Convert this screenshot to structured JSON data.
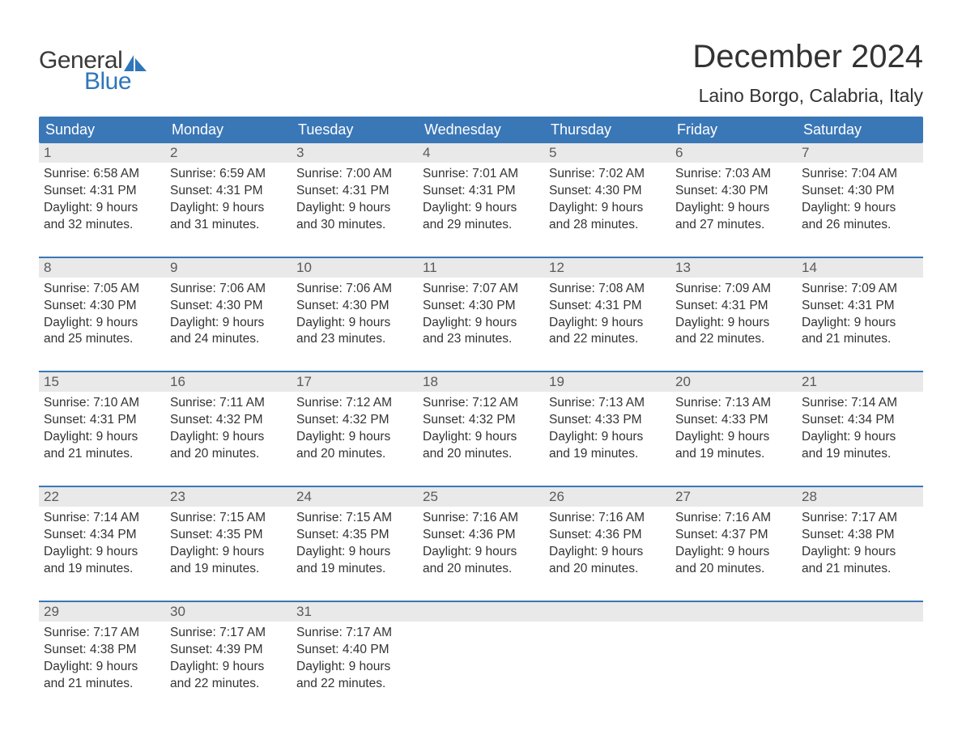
{
  "logo": {
    "general": "General",
    "blue": "Blue",
    "sail_color": "#2f76bb"
  },
  "title": "December 2024",
  "location": "Laino Borgo, Calabria, Italy",
  "colors": {
    "header_bg": "#3a77b7",
    "header_text": "#ffffff",
    "daynum_bg": "#e9e9e9",
    "daynum_text": "#5a5a5a",
    "body_text": "#333333",
    "week_border": "#3a77b7"
  },
  "weekdays": [
    "Sunday",
    "Monday",
    "Tuesday",
    "Wednesday",
    "Thursday",
    "Friday",
    "Saturday"
  ],
  "start_weekday_index": 0,
  "days": [
    {
      "n": 1,
      "sunrise": "6:58 AM",
      "sunset": "4:31 PM",
      "dl1": "Daylight: 9 hours",
      "dl2": "and 32 minutes."
    },
    {
      "n": 2,
      "sunrise": "6:59 AM",
      "sunset": "4:31 PM",
      "dl1": "Daylight: 9 hours",
      "dl2": "and 31 minutes."
    },
    {
      "n": 3,
      "sunrise": "7:00 AM",
      "sunset": "4:31 PM",
      "dl1": "Daylight: 9 hours",
      "dl2": "and 30 minutes."
    },
    {
      "n": 4,
      "sunrise": "7:01 AM",
      "sunset": "4:31 PM",
      "dl1": "Daylight: 9 hours",
      "dl2": "and 29 minutes."
    },
    {
      "n": 5,
      "sunrise": "7:02 AM",
      "sunset": "4:30 PM",
      "dl1": "Daylight: 9 hours",
      "dl2": "and 28 minutes."
    },
    {
      "n": 6,
      "sunrise": "7:03 AM",
      "sunset": "4:30 PM",
      "dl1": "Daylight: 9 hours",
      "dl2": "and 27 minutes."
    },
    {
      "n": 7,
      "sunrise": "7:04 AM",
      "sunset": "4:30 PM",
      "dl1": "Daylight: 9 hours",
      "dl2": "and 26 minutes."
    },
    {
      "n": 8,
      "sunrise": "7:05 AM",
      "sunset": "4:30 PM",
      "dl1": "Daylight: 9 hours",
      "dl2": "and 25 minutes."
    },
    {
      "n": 9,
      "sunrise": "7:06 AM",
      "sunset": "4:30 PM",
      "dl1": "Daylight: 9 hours",
      "dl2": "and 24 minutes."
    },
    {
      "n": 10,
      "sunrise": "7:06 AM",
      "sunset": "4:30 PM",
      "dl1": "Daylight: 9 hours",
      "dl2": "and 23 minutes."
    },
    {
      "n": 11,
      "sunrise": "7:07 AM",
      "sunset": "4:30 PM",
      "dl1": "Daylight: 9 hours",
      "dl2": "and 23 minutes."
    },
    {
      "n": 12,
      "sunrise": "7:08 AM",
      "sunset": "4:31 PM",
      "dl1": "Daylight: 9 hours",
      "dl2": "and 22 minutes."
    },
    {
      "n": 13,
      "sunrise": "7:09 AM",
      "sunset": "4:31 PM",
      "dl1": "Daylight: 9 hours",
      "dl2": "and 22 minutes."
    },
    {
      "n": 14,
      "sunrise": "7:09 AM",
      "sunset": "4:31 PM",
      "dl1": "Daylight: 9 hours",
      "dl2": "and 21 minutes."
    },
    {
      "n": 15,
      "sunrise": "7:10 AM",
      "sunset": "4:31 PM",
      "dl1": "Daylight: 9 hours",
      "dl2": "and 21 minutes."
    },
    {
      "n": 16,
      "sunrise": "7:11 AM",
      "sunset": "4:32 PM",
      "dl1": "Daylight: 9 hours",
      "dl2": "and 20 minutes."
    },
    {
      "n": 17,
      "sunrise": "7:12 AM",
      "sunset": "4:32 PM",
      "dl1": "Daylight: 9 hours",
      "dl2": "and 20 minutes."
    },
    {
      "n": 18,
      "sunrise": "7:12 AM",
      "sunset": "4:32 PM",
      "dl1": "Daylight: 9 hours",
      "dl2": "and 20 minutes."
    },
    {
      "n": 19,
      "sunrise": "7:13 AM",
      "sunset": "4:33 PM",
      "dl1": "Daylight: 9 hours",
      "dl2": "and 19 minutes."
    },
    {
      "n": 20,
      "sunrise": "7:13 AM",
      "sunset": "4:33 PM",
      "dl1": "Daylight: 9 hours",
      "dl2": "and 19 minutes."
    },
    {
      "n": 21,
      "sunrise": "7:14 AM",
      "sunset": "4:34 PM",
      "dl1": "Daylight: 9 hours",
      "dl2": "and 19 minutes."
    },
    {
      "n": 22,
      "sunrise": "7:14 AM",
      "sunset": "4:34 PM",
      "dl1": "Daylight: 9 hours",
      "dl2": "and 19 minutes."
    },
    {
      "n": 23,
      "sunrise": "7:15 AM",
      "sunset": "4:35 PM",
      "dl1": "Daylight: 9 hours",
      "dl2": "and 19 minutes."
    },
    {
      "n": 24,
      "sunrise": "7:15 AM",
      "sunset": "4:35 PM",
      "dl1": "Daylight: 9 hours",
      "dl2": "and 19 minutes."
    },
    {
      "n": 25,
      "sunrise": "7:16 AM",
      "sunset": "4:36 PM",
      "dl1": "Daylight: 9 hours",
      "dl2": "and 20 minutes."
    },
    {
      "n": 26,
      "sunrise": "7:16 AM",
      "sunset": "4:36 PM",
      "dl1": "Daylight: 9 hours",
      "dl2": "and 20 minutes."
    },
    {
      "n": 27,
      "sunrise": "7:16 AM",
      "sunset": "4:37 PM",
      "dl1": "Daylight: 9 hours",
      "dl2": "and 20 minutes."
    },
    {
      "n": 28,
      "sunrise": "7:17 AM",
      "sunset": "4:38 PM",
      "dl1": "Daylight: 9 hours",
      "dl2": "and 21 minutes."
    },
    {
      "n": 29,
      "sunrise": "7:17 AM",
      "sunset": "4:38 PM",
      "dl1": "Daylight: 9 hours",
      "dl2": "and 21 minutes."
    },
    {
      "n": 30,
      "sunrise": "7:17 AM",
      "sunset": "4:39 PM",
      "dl1": "Daylight: 9 hours",
      "dl2": "and 22 minutes."
    },
    {
      "n": 31,
      "sunrise": "7:17 AM",
      "sunset": "4:40 PM",
      "dl1": "Daylight: 9 hours",
      "dl2": "and 22 minutes."
    }
  ]
}
